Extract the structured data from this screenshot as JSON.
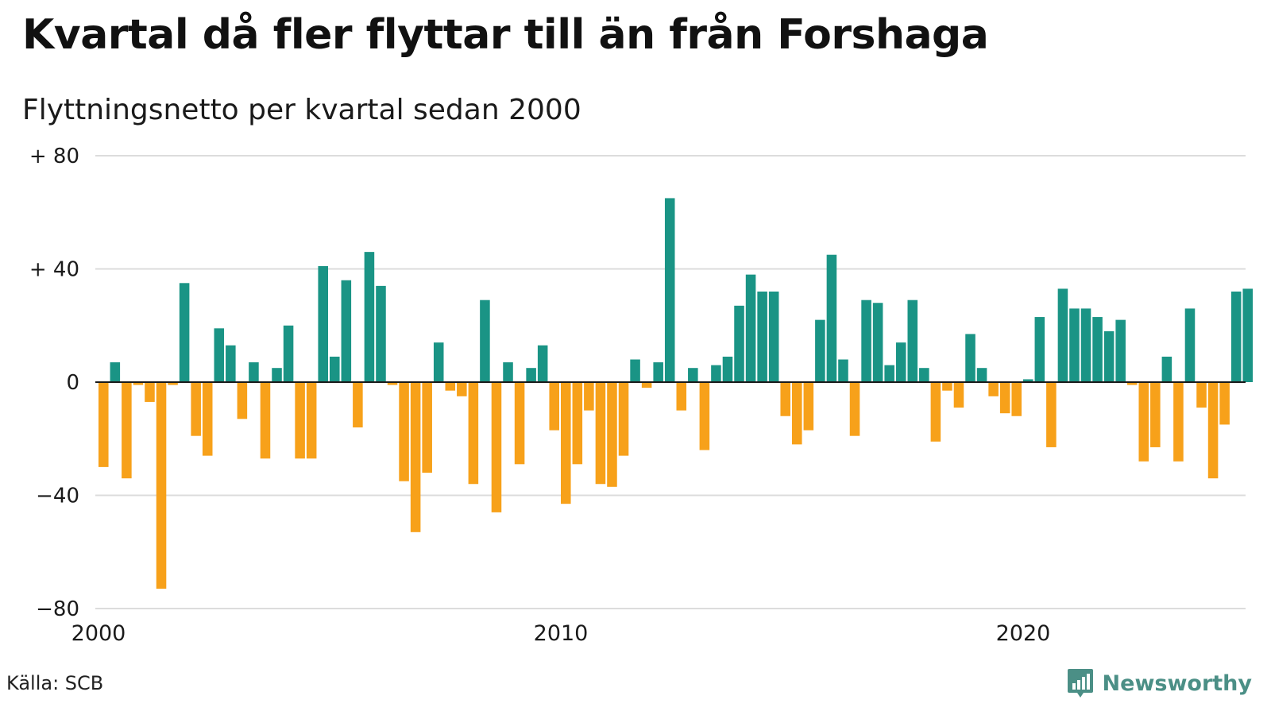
{
  "title": "Kvartal då fler flyttar till än från Forshaga",
  "subtitle": "Flyttningsnetto per kvartal sedan 2000",
  "source": "Källa: SCB",
  "brand": {
    "name": "Newsworthy",
    "icon": "newsworthy-logo-icon"
  },
  "colors": {
    "positive": "#1a9485",
    "negative": "#f7a11a",
    "grid": "#dcdcdc",
    "zero_line": "#1a1a1a"
  },
  "chart_data": {
    "type": "bar",
    "start_year": 2000,
    "grid": true,
    "ylim": [
      -80,
      80
    ],
    "y_ticks": [
      {
        "value": 80,
        "label": "+ 80"
      },
      {
        "value": 40,
        "label": "+ 40"
      },
      {
        "value": 0,
        "label": "0"
      },
      {
        "value": -40,
        "label": "−40"
      },
      {
        "value": -80,
        "label": "−80"
      }
    ],
    "x_ticks": [
      {
        "year": 2000,
        "label": "2000"
      },
      {
        "year": 2010,
        "label": "2010"
      },
      {
        "year": 2020,
        "label": "2020"
      }
    ],
    "values": [
      -30,
      7,
      -34,
      -1,
      -7,
      -73,
      -1,
      35,
      -19,
      -26,
      19,
      13,
      -13,
      7,
      -27,
      5,
      20,
      -27,
      -27,
      41,
      9,
      36,
      -16,
      46,
      34,
      -1,
      -35,
      -53,
      -32,
      14,
      -3,
      -5,
      -36,
      29,
      -46,
      7,
      -29,
      5,
      13,
      -17,
      -43,
      -29,
      -10,
      -36,
      -37,
      -26,
      8,
      -2,
      7,
      65,
      -10,
      5,
      -24,
      6,
      9,
      27,
      38,
      32,
      32,
      -12,
      -22,
      -17,
      22,
      45,
      8,
      -19,
      29,
      28,
      6,
      14,
      29,
      5,
      -21,
      -3,
      -9,
      17,
      5,
      -5,
      -11,
      -12,
      1,
      23,
      -23,
      33,
      26,
      26,
      23,
      18,
      22,
      -1,
      -28,
      -23,
      9,
      -28,
      26,
      -9,
      -34,
      -15,
      32,
      33
    ]
  }
}
